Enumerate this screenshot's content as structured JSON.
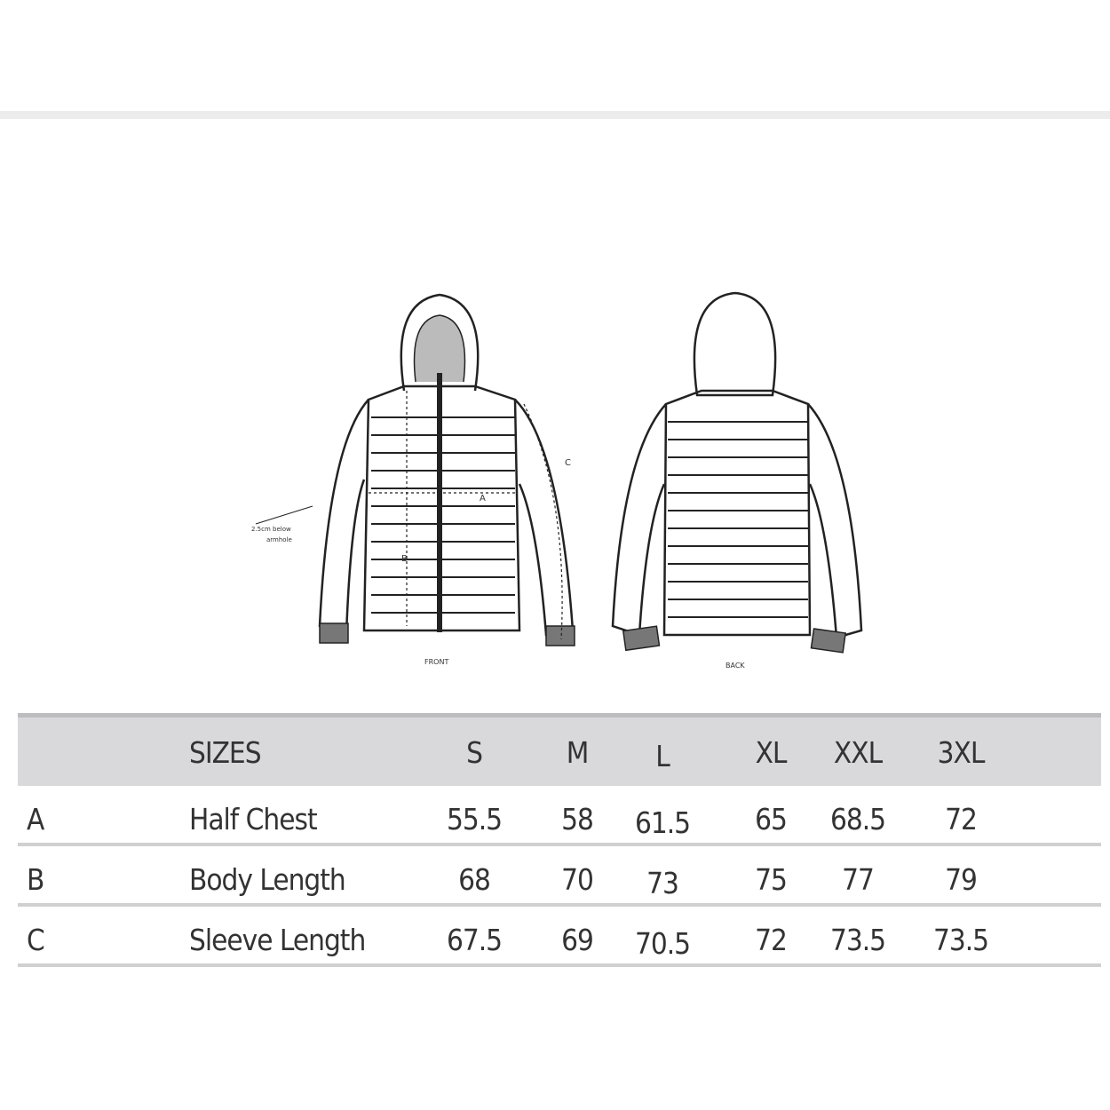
{
  "diagram": {
    "front_label": "FRONT",
    "back_label": "BACK",
    "marker_a": "A",
    "marker_b": "B",
    "marker_c": "C",
    "note_line1": "2.5cm below",
    "note_line2": "armhole"
  },
  "table": {
    "header": {
      "label": "SIZES",
      "sizes": [
        "S",
        "M",
        "L",
        "XL",
        "XXL",
        "3XL"
      ]
    },
    "rows": [
      {
        "code": "A",
        "name": "Half Chest",
        "values": [
          "55.5",
          "58",
          "61.5",
          "65",
          "68.5",
          "72"
        ]
      },
      {
        "code": "B",
        "name": "Body Length",
        "values": [
          "68",
          "70",
          "73",
          "75",
          "77",
          "79"
        ]
      },
      {
        "code": "C",
        "name": "Sleeve Length",
        "values": [
          "67.5",
          "69",
          "70.5",
          "72",
          "73.5",
          "73.5"
        ]
      }
    ]
  },
  "colors": {
    "header_bg": "#d9d9dc",
    "separator": "#d0d0d3",
    "text": "#333333"
  }
}
